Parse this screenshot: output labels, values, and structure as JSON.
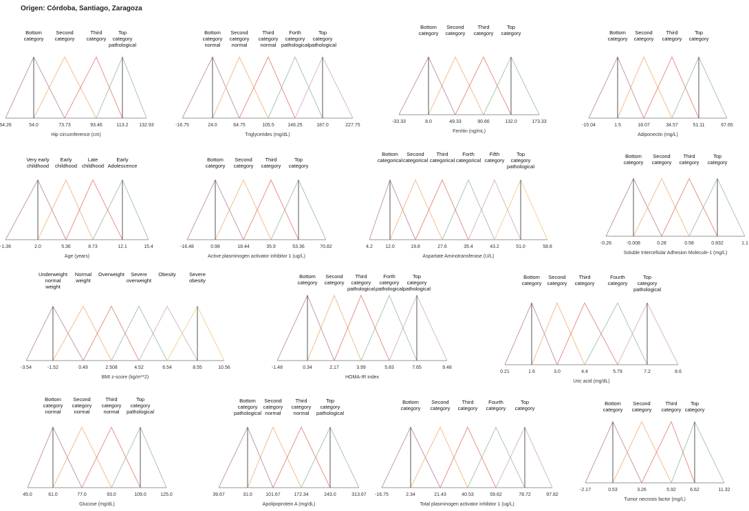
{
  "origin": "Origen: Córdoba, Santiago, Zaragoza",
  "chart_data": [
    {
      "type": "line",
      "xlabel": "Hip circumference (cm)",
      "ticks": [
        "54.26",
        "54.0",
        "73.73",
        "93.46",
        "113.2",
        "132.93"
      ],
      "x": [
        54.26,
        54.0,
        73.73,
        93.46,
        113.2,
        132.93
      ],
      "series": [
        {
          "name": "Bottom\ncategory"
        },
        {
          "name": "Second\ncategory"
        },
        {
          "name": "Third\ncategory"
        },
        {
          "name": "Top\ncategory\npathological"
        }
      ],
      "peaks": [
        54.0,
        73.73,
        93.46,
        113.2
      ]
    },
    {
      "type": "line",
      "xlabel": "Triglycerides (mg/dL)",
      "ticks": [
        "-16.75",
        "24.0",
        "64.75",
        "105.5",
        "146.25",
        "187.0",
        "227.75"
      ],
      "x": [
        -16.75,
        24.0,
        64.75,
        105.5,
        146.25,
        187.0,
        227.75
      ],
      "series": [
        {
          "name": "Bottom\ncategory\nnormal"
        },
        {
          "name": "Second\ncategory\nnormal"
        },
        {
          "name": "Third\ncategory\nnormal"
        },
        {
          "name": "Forth\ncategory\npathological"
        },
        {
          "name": "Top\ncategory\npathological"
        }
      ],
      "peaks": [
        24.0,
        64.75,
        105.5,
        146.25,
        187.0
      ]
    },
    {
      "type": "line",
      "xlabel": "Ferritin (ng/mL)",
      "ticks": [
        "-33.33",
        "8.0",
        "49.33",
        "90.66",
        "132.0",
        "173.33"
      ],
      "x": [
        -33.33,
        8.0,
        49.33,
        90.66,
        132.0,
        173.33
      ],
      "series": [
        {
          "name": "Bottom\ncategory"
        },
        {
          "name": "Second\ncategory"
        },
        {
          "name": "Third\ncategory"
        },
        {
          "name": "Top\ncategory"
        }
      ],
      "peaks": [
        8.0,
        49.33,
        90.66,
        132.0
      ]
    },
    {
      "type": "line",
      "xlabel": "Adiponectin (mg/L)",
      "ticks": [
        "-15.04",
        "1.5",
        "18.07",
        "34.57",
        "51.11",
        "67.65"
      ],
      "x": [
        -15.04,
        1.5,
        18.07,
        34.57,
        51.11,
        67.65
      ],
      "series": [
        {
          "name": "Bottom\ncategory"
        },
        {
          "name": "Second\ncategory"
        },
        {
          "name": "Third\ncategory"
        },
        {
          "name": "Top\ncategory"
        }
      ],
      "peaks": [
        1.5,
        18.07,
        34.57,
        51.11
      ]
    },
    {
      "type": "line",
      "xlabel": "Age (years)",
      "ticks": [
        "-1.36",
        "2.0",
        "5.36",
        "8.73",
        "12.1",
        "15.4"
      ],
      "x": [
        -1.36,
        2.0,
        5.36,
        8.73,
        12.1,
        15.4
      ],
      "series": [
        {
          "name": "Very early\nchildhood"
        },
        {
          "name": "Early\nchildhood"
        },
        {
          "name": "Late\nchildhood"
        },
        {
          "name": "Early\nAdolescence"
        }
      ],
      "peaks": [
        2.0,
        5.36,
        8.73,
        12.1
      ]
    },
    {
      "type": "line",
      "xlabel": "Active plasminogen activator inhibitor 1 (ug/L)",
      "ticks": [
        "-16.48",
        "0.98",
        "18.44",
        "35.9",
        "53.36",
        "70.82"
      ],
      "x": [
        -16.48,
        0.98,
        18.44,
        35.9,
        53.36,
        70.82
      ],
      "series": [
        {
          "name": "Bottom\ncategory"
        },
        {
          "name": "Second\ncategory"
        },
        {
          "name": "Third\ncategory"
        },
        {
          "name": "Top\ncategory"
        }
      ],
      "peaks": [
        0.98,
        18.44,
        35.9,
        53.36
      ]
    },
    {
      "type": "line",
      "xlabel": "Aspartate Aminotransferase (U/L)",
      "ticks": [
        "4.2",
        "12.0",
        "19.8",
        "27.6",
        "35.4",
        "43.2",
        "51.0",
        "58.8"
      ],
      "x": [
        4.2,
        12.0,
        19.8,
        27.6,
        35.4,
        43.2,
        51.0,
        58.8
      ],
      "series": [
        {
          "name": "Bottom\ncategorical"
        },
        {
          "name": "Second\ncategorical"
        },
        {
          "name": "Third\ncategorical"
        },
        {
          "name": "Forth\ncategorical"
        },
        {
          "name": "Fifth\ncategory"
        },
        {
          "name": "Top\ncategory\npathological"
        }
      ],
      "peaks": [
        12.0,
        19.8,
        27.6,
        35.4,
        43.2,
        51.0
      ]
    },
    {
      "type": "line",
      "xlabel": "Soluble Intercellular Adhesion Molecule-1 (mg/L)",
      "ticks": [
        "-0.26",
        "-0.008",
        "0.28",
        "0.58",
        "0.832",
        "1.1"
      ],
      "x": [
        -0.26,
        -0.008,
        0.28,
        0.58,
        0.832,
        1.1
      ],
      "series": [
        {
          "name": "Bottom\ncategory"
        },
        {
          "name": "Second\ncategory"
        },
        {
          "name": "Third\ncategory"
        },
        {
          "name": "Top\ncategory"
        }
      ],
      "peaks": [
        -0.008,
        0.28,
        0.58,
        0.832
      ]
    },
    {
      "type": "line",
      "xlabel": "BMI z-score (kg/m**2)",
      "ticks": [
        "-3.54",
        "-1.52",
        "0.49",
        "2.508",
        "4.52",
        "6.54",
        "8.55",
        "10.56"
      ],
      "x": [
        -3.54,
        -1.52,
        0.49,
        2.508,
        4.52,
        6.54,
        8.55,
        10.56
      ],
      "series": [
        {
          "name": "Underweight\nnormal\nweight"
        },
        {
          "name": "Normal\nweight"
        },
        {
          "name": "Overweight"
        },
        {
          "name": "Severe\noverweight"
        },
        {
          "name": "Obesity"
        },
        {
          "name": "Severe\nobesity"
        }
      ],
      "peaks": [
        -1.52,
        0.49,
        2.508,
        4.52,
        6.54,
        8.55
      ]
    },
    {
      "type": "line",
      "xlabel": "HOMA-IR index",
      "ticks": [
        "-1.48",
        "0.34",
        "2.17",
        "3.99",
        "5.83",
        "7.65",
        "9.48"
      ],
      "x": [
        -1.48,
        0.34,
        2.17,
        3.99,
        5.83,
        7.65,
        9.48
      ],
      "series": [
        {
          "name": "Bottom\ncategory"
        },
        {
          "name": "Second\ncategory"
        },
        {
          "name": "Third\ncategory\npathological"
        },
        {
          "name": "Forth\ncategory\npathological"
        },
        {
          "name": "Top\ncategory\npathological"
        }
      ],
      "peaks": [
        0.34,
        2.17,
        3.99,
        5.83,
        7.65
      ]
    },
    {
      "type": "line",
      "xlabel": "Uric acid (mg/dL)",
      "ticks": [
        "0.21",
        "1.6",
        "3.0",
        "4.4",
        "5.79",
        "7.2",
        "8.6"
      ],
      "x": [
        0.21,
        1.6,
        3.0,
        4.4,
        5.79,
        7.2,
        8.6
      ],
      "series": [
        {
          "name": "Bottom\ncategory"
        },
        {
          "name": "Second\ncategory"
        },
        {
          "name": "Third\ncategory"
        },
        {
          "name": "Fourth\ncategory"
        },
        {
          "name": "Top\ncategory\npathological"
        }
      ],
      "peaks": [
        1.6,
        3.0,
        4.4,
        5.79,
        7.2
      ]
    },
    {
      "type": "line",
      "xlabel": "Glucose (mg/dL)",
      "ticks": [
        "45.0",
        "61.0",
        "77.0",
        "93.0",
        "109.0",
        "125.0"
      ],
      "x": [
        45.0,
        61.0,
        77.0,
        93.0,
        109.0,
        125.0
      ],
      "series": [
        {
          "name": "Bottom\ncategory\nnormal"
        },
        {
          "name": "Second\ncategory\nnormal"
        },
        {
          "name": "Third\ncategory\nnormal"
        },
        {
          "name": "Top\ncategory\npathological"
        }
      ],
      "peaks": [
        61.0,
        77.0,
        93.0,
        109.0
      ]
    },
    {
      "type": "line",
      "xlabel": "Apolipoprotein A (mg/dL)",
      "ticks": [
        "39.67",
        "31.0",
        "101.67",
        "172.34",
        "243.0",
        "313.67"
      ],
      "x": [
        39.67,
        31.0,
        101.67,
        172.34,
        243.0,
        313.67
      ],
      "series": [
        {
          "name": "Bottom\ncategory\npathological"
        },
        {
          "name": "Second\ncategory\nnormal"
        },
        {
          "name": "Third\ncategory\nnormal"
        },
        {
          "name": "Top\ncategory\npathological"
        }
      ],
      "peaks": [
        31.0,
        101.67,
        172.34,
        243.0
      ]
    },
    {
      "type": "line",
      "xlabel": "Total plasminogen activator inhibitor 1 (ug/L)",
      "ticks": [
        "-16.75",
        "2.34",
        "21.43",
        "40.53",
        "59.62",
        "78.72",
        "97.82"
      ],
      "x": [
        -16.75,
        2.34,
        21.43,
        40.53,
        59.62,
        78.72,
        97.82
      ],
      "series": [
        {
          "name": "Bottom\ncategory"
        },
        {
          "name": "Second\ncategory"
        },
        {
          "name": "Third\ncategory"
        },
        {
          "name": "Fourth\ncategory"
        },
        {
          "name": "Top\ncategory"
        }
      ],
      "peaks": [
        2.34,
        21.43,
        40.53,
        59.62,
        78.72
      ]
    },
    {
      "type": "line",
      "xlabel": "Tumor necrosis factor (mg/L)",
      "ticks": [
        "-2.17",
        "0.53",
        "3.26",
        "5.92",
        "6.62",
        "11.32"
      ],
      "x": [
        -2.17,
        0.53,
        3.26,
        5.92,
        6.62,
        11.32
      ],
      "series": [
        {
          "name": "Bottom\ncategory"
        },
        {
          "name": "Second\ncategory"
        },
        {
          "name": "Third\ncategory"
        },
        {
          "name": "Top\ncategory"
        }
      ],
      "peaks": [
        0.53,
        3.26,
        5.92,
        6.62
      ]
    }
  ],
  "colors": [
    "#b07a8c",
    "#f0a868",
    "#e06d63",
    "#8fb39e",
    "#c9a2b0",
    "#f2c27a"
  ]
}
